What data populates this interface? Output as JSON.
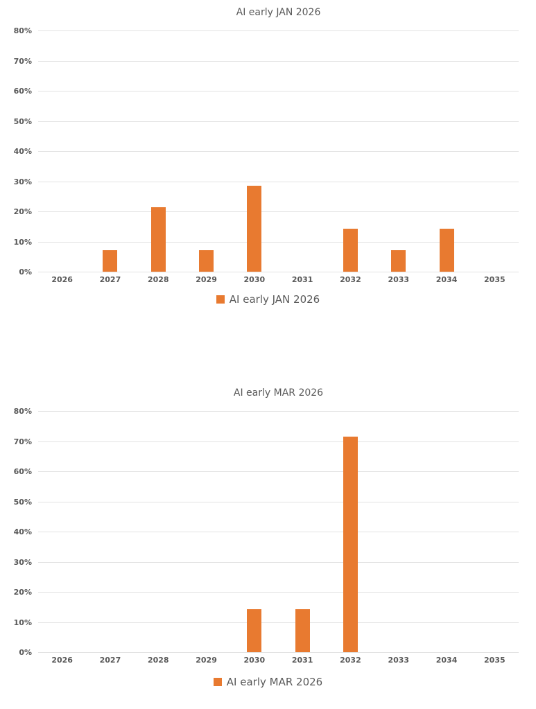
{
  "colors": {
    "bar": "#E87A30",
    "grid": "#E2E2E2",
    "text": "#595959",
    "background": "#FFFFFF"
  },
  "chart_data": [
    {
      "type": "bar",
      "title": "AI early JAN 2026",
      "legend_label": "AI early JAN 2026",
      "legend_position": "bottom",
      "grid": true,
      "categories": [
        "2026",
        "2027",
        "2028",
        "2029",
        "2030",
        "2031",
        "2032",
        "2033",
        "2034",
        "2035"
      ],
      "values": [
        0,
        7.14,
        21.43,
        7.14,
        28.57,
        0,
        14.29,
        7.14,
        14.29,
        0
      ],
      "unit": "%",
      "xlabel": "",
      "ylabel": "",
      "ylim": [
        0,
        80
      ],
      "ytick_step": 10,
      "ytick_labels": [
        "0%",
        "10%",
        "20%",
        "30%",
        "40%",
        "50%",
        "60%",
        "70%",
        "80%"
      ]
    },
    {
      "type": "bar",
      "title": "AI early MAR 2026",
      "legend_label": "AI early MAR 2026",
      "legend_position": "bottom",
      "grid": true,
      "categories": [
        "2026",
        "2027",
        "2028",
        "2029",
        "2030",
        "2031",
        "2032",
        "2033",
        "2034",
        "2035"
      ],
      "values": [
        0,
        0,
        0,
        0,
        14.29,
        14.29,
        71.43,
        0,
        0,
        0
      ],
      "unit": "%",
      "xlabel": "",
      "ylabel": "",
      "ylim": [
        0,
        80
      ],
      "ytick_step": 10,
      "ytick_labels": [
        "0%",
        "10%",
        "20%",
        "30%",
        "40%",
        "50%",
        "60%",
        "70%",
        "80%"
      ]
    }
  ]
}
